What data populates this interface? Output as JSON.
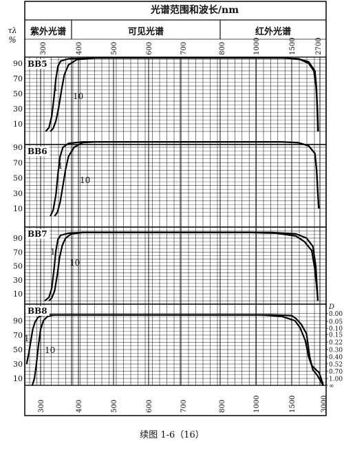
{
  "header": {
    "title": "光谱范围和波长/nm",
    "y_symbol": "τλ",
    "y_unit": "%",
    "bands": [
      {
        "label": "紫外光谱",
        "from": 250,
        "to": 380
      },
      {
        "label": "可见光谱",
        "from": 380,
        "to": 780
      },
      {
        "label": "红外光谱",
        "from": 780,
        "to": 3000
      }
    ]
  },
  "caption": "续图 1-6（16）",
  "right_axis": {
    "symbol": "D",
    "labels": [
      "0.00",
      "0.05",
      "0.10",
      "0.15",
      "0.22",
      "0.30",
      "0.40",
      "0.52",
      "0.70",
      "1.00",
      "∞"
    ]
  },
  "chart_data": {
    "type": "line",
    "x_scale": "piecewise",
    "x_segments": [
      {
        "from": 250,
        "to": 800,
        "scale": "linear"
      },
      {
        "from": 800,
        "to": 1500,
        "scale": "linear"
      },
      {
        "from": 1500,
        "to": 3000,
        "scale": "linear"
      }
    ],
    "top_tick_labels": [
      "300",
      "400",
      "500",
      "600",
      "700",
      "800",
      "1000",
      "1500",
      "2700"
    ],
    "bottom_tick_labels": [
      "300",
      "400",
      "500",
      "600",
      "700",
      "800",
      "1000",
      "1500",
      "3000"
    ],
    "y_ticks": [
      10,
      30,
      50,
      70,
      90
    ],
    "ylim": [
      0,
      100
    ],
    "grid": true,
    "panels": [
      {
        "name": "BB5",
        "series": [
          {
            "name": "1",
            "points": [
              [
                318,
                0
              ],
              [
                330,
                5
              ],
              [
                340,
                20
              ],
              [
                348,
                45
              ],
              [
                355,
                70
              ],
              [
                362,
                86
              ],
              [
                372,
                93
              ],
              [
                400,
                96
              ],
              [
                500,
                97
              ],
              [
                1200,
                97
              ],
              [
                1450,
                97
              ],
              [
                1900,
                95
              ],
              [
                2300,
                90
              ],
              [
                2550,
                80
              ],
              [
                2650,
                60
              ],
              [
                2720,
                30
              ],
              [
                2760,
                0
              ]
            ]
          },
          {
            "name": "10",
            "points": [
              [
                335,
                0
              ],
              [
                345,
                4
              ],
              [
                355,
                14
              ],
              [
                365,
                32
              ],
              [
                375,
                55
              ],
              [
                385,
                75
              ],
              [
                400,
                88
              ],
              [
                430,
                95
              ],
              [
                500,
                97
              ],
              [
                1400,
                97
              ],
              [
                1800,
                96
              ],
              [
                2300,
                92
              ],
              [
                2600,
                80
              ],
              [
                2680,
                55
              ],
              [
                2720,
                20
              ],
              [
                2740,
                0
              ]
            ]
          }
        ]
      },
      {
        "name": "BB6",
        "series": [
          {
            "name": "1",
            "points": [
              [
                335,
                0
              ],
              [
                345,
                8
              ],
              [
                355,
                28
              ],
              [
                362,
                55
              ],
              [
                370,
                78
              ],
              [
                380,
                90
              ],
              [
                400,
                95
              ],
              [
                450,
                97
              ],
              [
                1400,
                97
              ],
              [
                1800,
                96
              ],
              [
                2300,
                92
              ],
              [
                2600,
                82
              ],
              [
                2680,
                60
              ],
              [
                2740,
                30
              ],
              [
                2780,
                10
              ]
            ]
          },
          {
            "name": "10",
            "points": [
              [
                350,
                0
              ],
              [
                360,
                5
              ],
              [
                370,
                18
              ],
              [
                380,
                40
              ],
              [
                390,
                62
              ],
              [
                400,
                78
              ],
              [
                420,
                90
              ],
              [
                450,
                96
              ],
              [
                500,
                97
              ],
              [
                1400,
                97
              ],
              [
                1800,
                96
              ],
              [
                2300,
                92
              ],
              [
                2600,
                82
              ],
              [
                2680,
                60
              ],
              [
                2740,
                30
              ],
              [
                2780,
                10
              ]
            ]
          }
        ]
      },
      {
        "name": "BB7",
        "series": [
          {
            "name": "1",
            "points": [
              [
                315,
                0
              ],
              [
                330,
                5
              ],
              [
                340,
                18
              ],
              [
                348,
                45
              ],
              [
                355,
                72
              ],
              [
                362,
                88
              ],
              [
                372,
                94
              ],
              [
                400,
                97
              ],
              [
                450,
                98
              ],
              [
                1100,
                98
              ],
              [
                1350,
                97
              ],
              [
                1700,
                93
              ],
              [
                2100,
                85
              ],
              [
                2450,
                72
              ],
              [
                2600,
                45
              ],
              [
                2700,
                15
              ],
              [
                2740,
                0
              ]
            ]
          },
          {
            "name": "10",
            "points": [
              [
                330,
                0
              ],
              [
                340,
                4
              ],
              [
                350,
                14
              ],
              [
                360,
                38
              ],
              [
                368,
                62
              ],
              [
                378,
                80
              ],
              [
                390,
                90
              ],
              [
                410,
                96
              ],
              [
                450,
                98
              ],
              [
                1300,
                98
              ],
              [
                1700,
                96
              ],
              [
                2200,
                90
              ],
              [
                2500,
                78
              ],
              [
                2640,
                50
              ],
              [
                2700,
                20
              ],
              [
                2740,
                0
              ]
            ]
          }
        ]
      },
      {
        "name": "BB8",
        "series": [
          {
            "name": "1",
            "points": [
              [
                250,
                30
              ],
              [
                258,
                45
              ],
              [
                265,
                62
              ],
              [
                272,
                78
              ],
              [
                280,
                88
              ],
              [
                290,
                94
              ],
              [
                300,
                97
              ],
              [
                320,
                98
              ],
              [
                1200,
                98
              ],
              [
                1400,
                96
              ],
              [
                1650,
                90
              ],
              [
                1900,
                80
              ],
              [
                2150,
                62
              ],
              [
                2300,
                40
              ],
              [
                2450,
                28
              ],
              [
                2650,
                22
              ],
              [
                2800,
                18
              ],
              [
                2950,
                5
              ],
              [
                3000,
                0
              ]
            ]
          },
          {
            "name": "10",
            "points": [
              [
                270,
                0
              ],
              [
                278,
                10
              ],
              [
                285,
                30
              ],
              [
                292,
                55
              ],
              [
                300,
                78
              ],
              [
                310,
                90
              ],
              [
                325,
                96
              ],
              [
                350,
                98
              ],
              [
                1300,
                98
              ],
              [
                1500,
                97
              ],
              [
                1700,
                93
              ],
              [
                1950,
                85
              ],
              [
                2200,
                72
              ],
              [
                2350,
                40
              ],
              [
                2500,
                22
              ],
              [
                2700,
                15
              ],
              [
                2900,
                5
              ],
              [
                3000,
                0
              ]
            ]
          }
        ]
      }
    ]
  }
}
